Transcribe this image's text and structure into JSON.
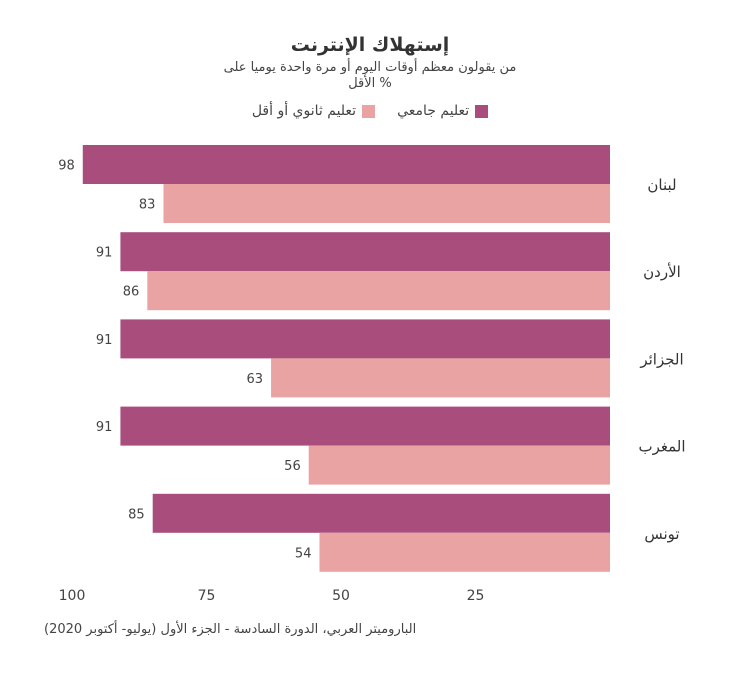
{
  "chart_data": {
    "type": "bar",
    "orientation": "horizontal",
    "title": "إستهلاك الإنترنت",
    "subtitle_line1": "من يقولون معظم أوقات اليوم أو مرة واحدة يوميا على",
    "subtitle_line2": "% الأقل",
    "categories": [
      "لبنان",
      "الأردن",
      "الجزائر",
      "المغرب",
      "تونس"
    ],
    "series": [
      {
        "name": "تعليم جامعي",
        "color": "#a94e7c",
        "values": [
          98,
          91,
          91,
          91,
          85
        ]
      },
      {
        "name": "تعليم ثانوي أو أقل",
        "color": "#e9a3a3",
        "values": [
          83,
          86,
          63,
          56,
          54
        ]
      }
    ],
    "xlim": [
      0,
      100
    ],
    "x_reversed": true,
    "x_ticks": [
      100,
      75,
      50,
      25
    ],
    "grid": false,
    "legend_position": "top"
  },
  "source": "الباروميتر العربي، الدورة السادسة - الجزء الأول (يوليو- أكتوبر 2020)"
}
